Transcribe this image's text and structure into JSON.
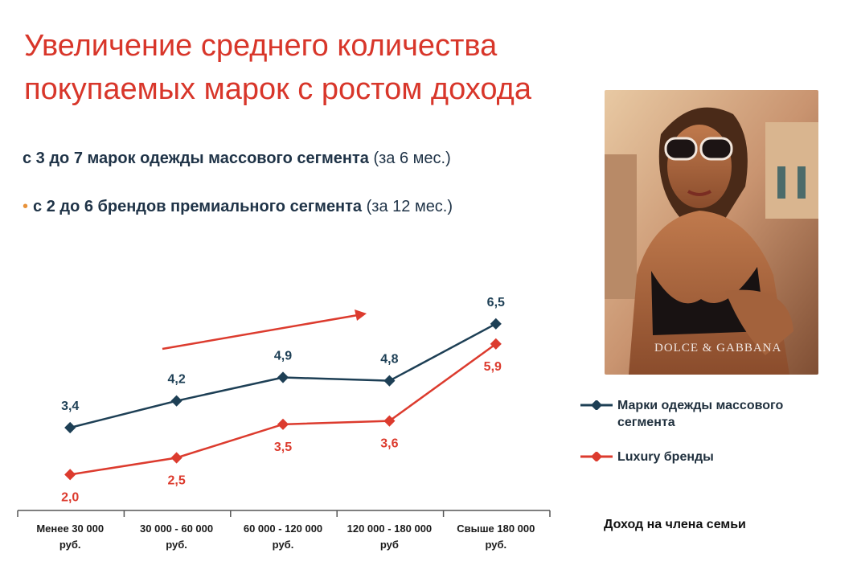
{
  "title": {
    "line1": "Увеличение среднего количества",
    "line2": "покупаемых марок с ростом дохода"
  },
  "bullets": [
    {
      "bold": "с 3 до 7 марок одежды массового сегмента",
      "note": "(за 6 мес.)"
    },
    {
      "marker": "•",
      "bold": "с 2 до 6 брендов премиального сегмента",
      "note": "(за 12 мес.)"
    }
  ],
  "photo": {
    "logo": "DOLCE & GABBANA"
  },
  "colors": {
    "title": "#d8362a",
    "mass": "#1d3f55",
    "luxury": "#dc3b2e",
    "arrow": "#dc3b2e"
  },
  "chart_data": {
    "type": "line",
    "categories": [
      "Менее 30 000 руб.",
      "30 000 - 60 000 руб.",
      "60 000 - 120 000 руб.",
      "120 000 - 180 000 руб",
      "Свыше 180 000 руб."
    ],
    "series": [
      {
        "name": "Марки одежды массового сегмента",
        "values": [
          3.4,
          4.2,
          4.9,
          4.8,
          6.5
        ],
        "labels": [
          "3,4",
          "4,2",
          "4,9",
          "4,8",
          "6,5"
        ],
        "color": "#1d3f55"
      },
      {
        "name": "Luxury бренды",
        "values": [
          2.0,
          2.5,
          3.5,
          3.6,
          5.9
        ],
        "labels": [
          "2,0",
          "2,5",
          "3,5",
          "3,6",
          "5,9"
        ],
        "color": "#dc3b2e"
      }
    ],
    "xlabel": "Доход на члена семьи",
    "ylabel": "",
    "ylim": [
      1,
      7
    ],
    "grid": false,
    "legend": "right",
    "annotation": "trend arrow"
  }
}
